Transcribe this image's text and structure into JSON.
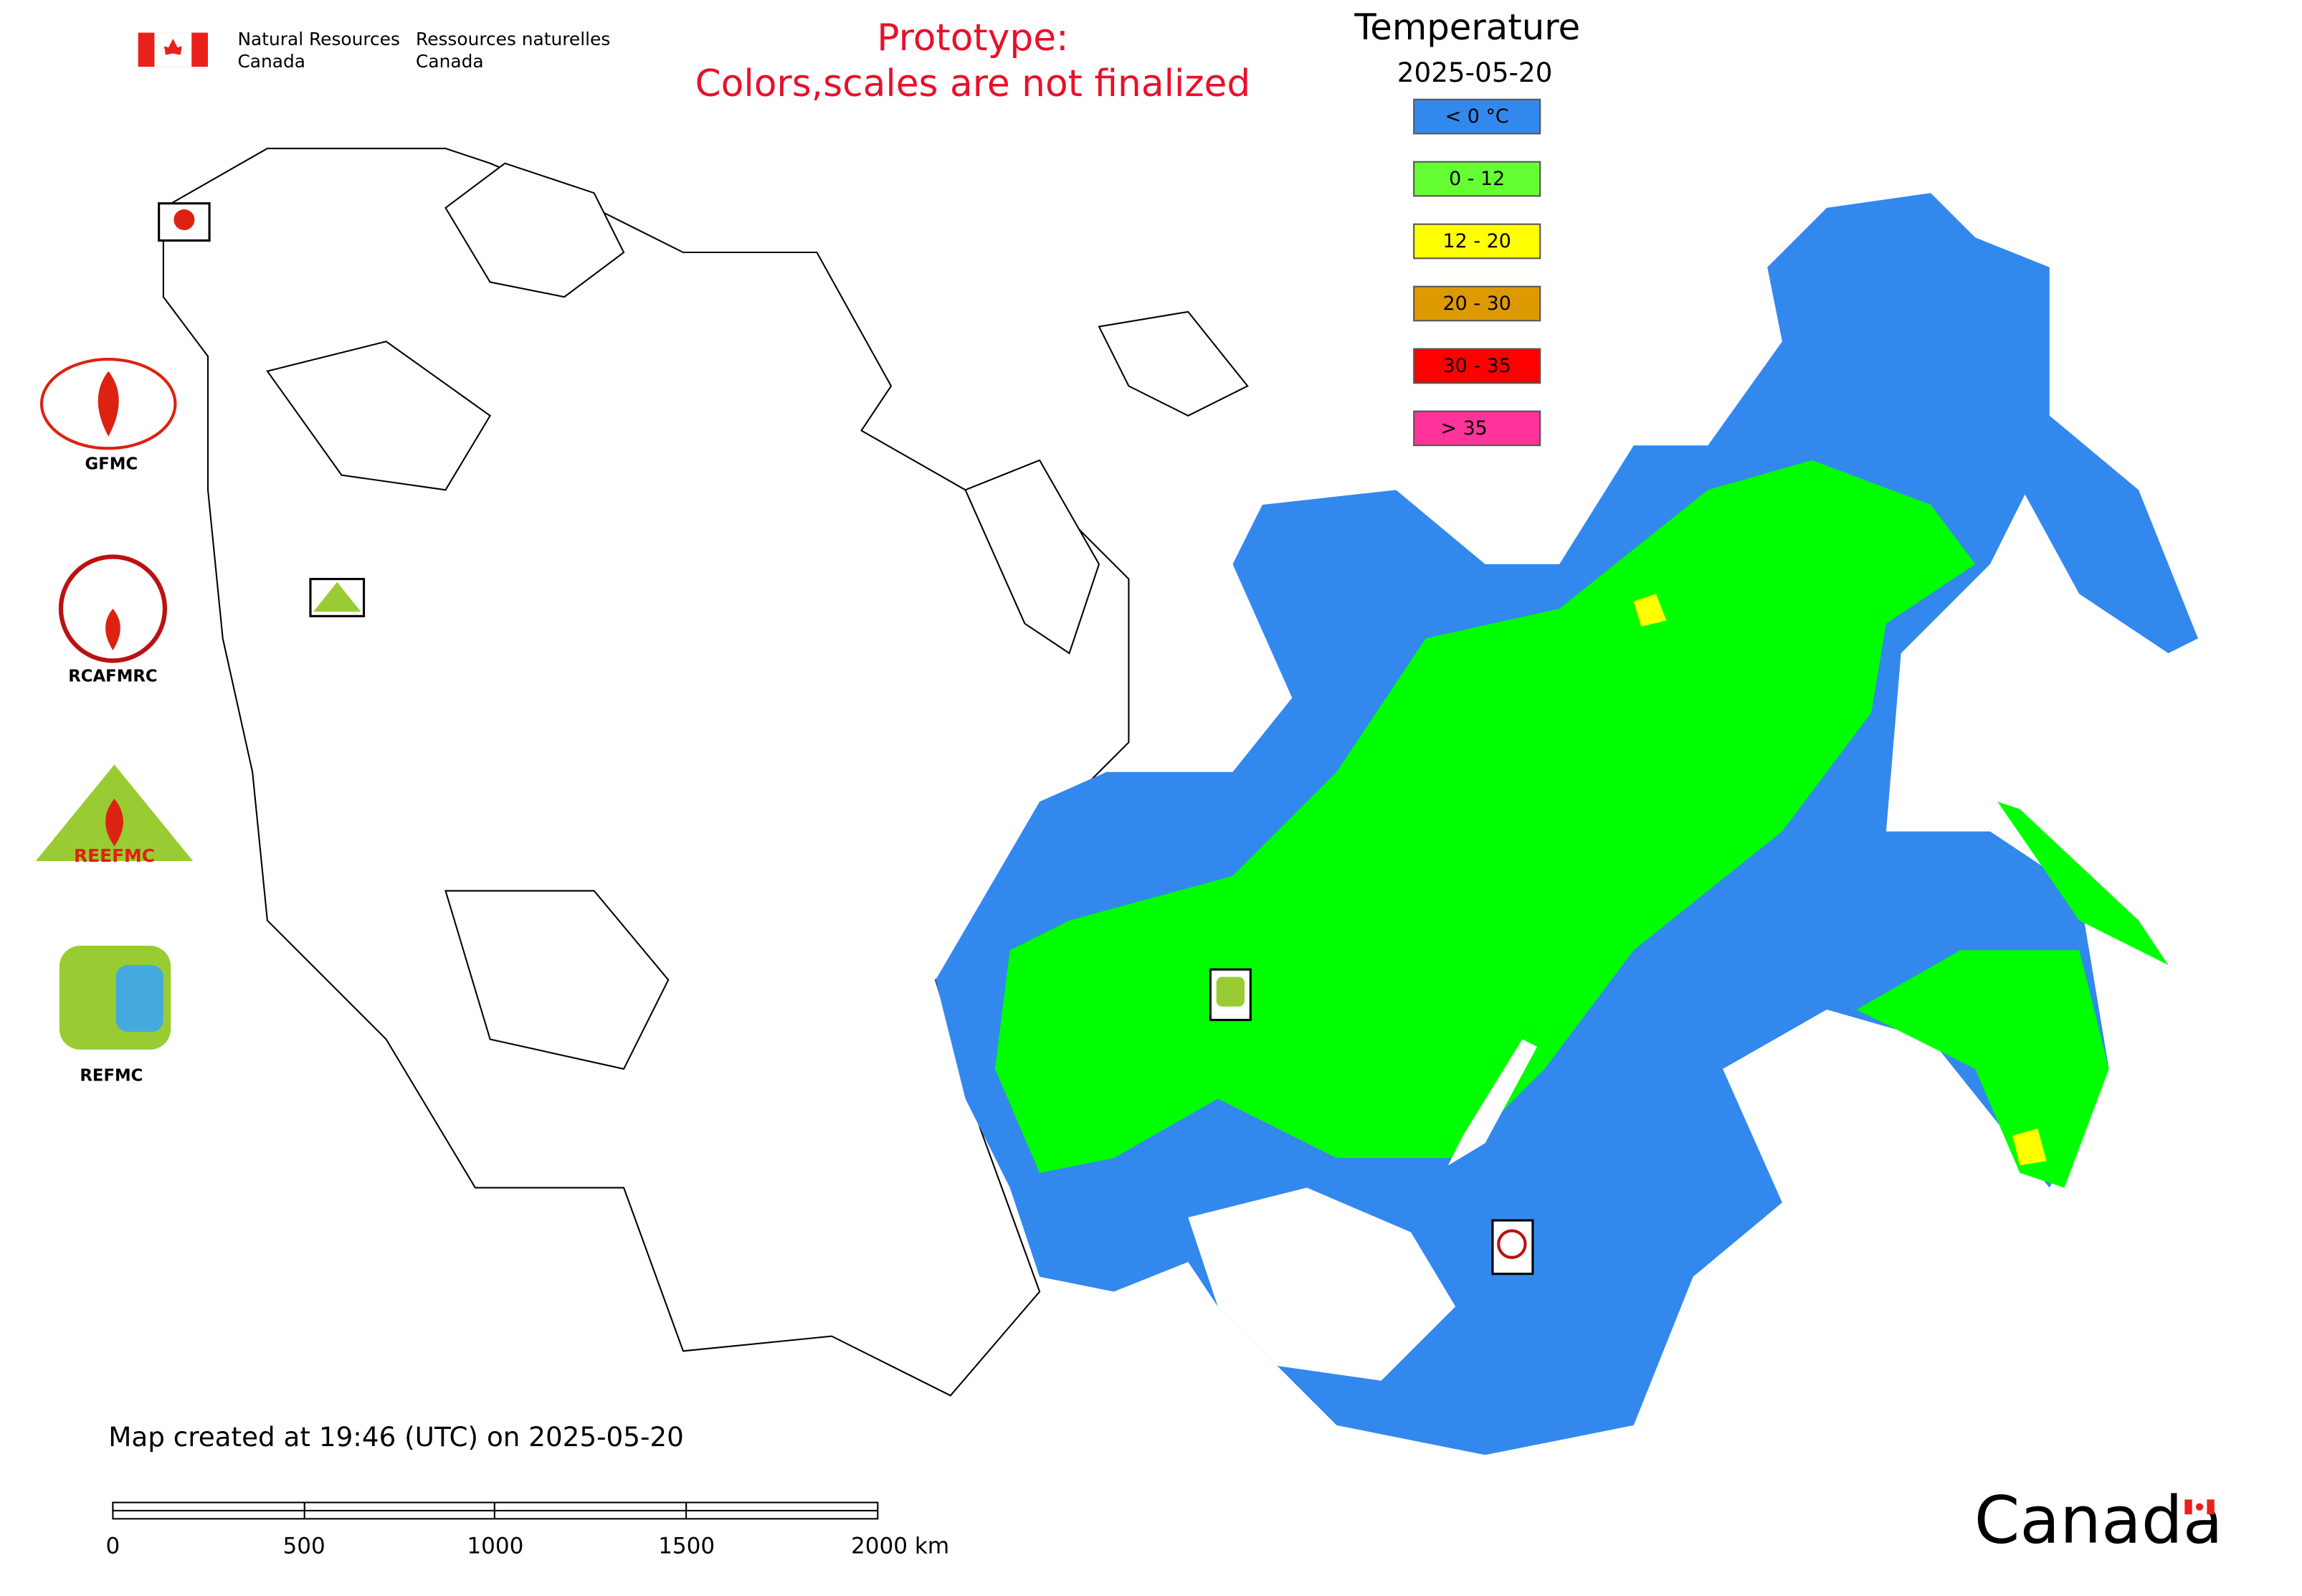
{
  "header": {
    "agency_en": [
      "Natural Resources",
      "Canada"
    ],
    "agency_fr": [
      "Ressources naturelles",
      "Canada"
    ]
  },
  "notice": [
    "Prototype:",
    "Colors,scales are not finalized"
  ],
  "legend": {
    "title": "Temperature",
    "date": "2025-05-20",
    "items": [
      {
        "label": "< 0 °C",
        "color": "#3388ee"
      },
      {
        "label": "0 - 12",
        "color": "#66ff33"
      },
      {
        "label": "12 - 20",
        "color": "#ffff00"
      },
      {
        "label": "20 - 30",
        "color": "#dd9900"
      },
      {
        "label": "30 - 35",
        "color": "#ff0000"
      },
      {
        "label": "> 35",
        "color": "#ff3399"
      }
    ]
  },
  "logos": [
    "GFMC",
    "RCAFMRC",
    "REEFMC",
    "REFMC"
  ],
  "footer": "Map created at 19:46 (UTC) on 2025-05-20",
  "scale_bar": [
    "0",
    "500",
    "1000",
    "1500",
    "2000 km"
  ],
  "wordmark": "Canada"
}
